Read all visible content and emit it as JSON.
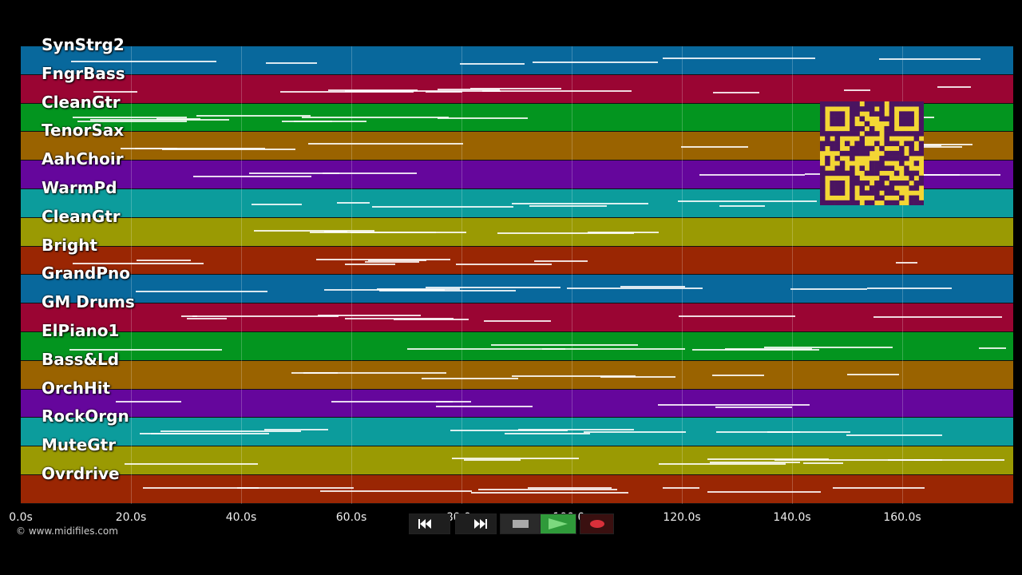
{
  "tracks": [
    {
      "name": "SynStrg2",
      "color": "#08689c"
    },
    {
      "name": "FngrBass",
      "color": "#9a0533"
    },
    {
      "name": "CleanGtr",
      "color": "#03951f"
    },
    {
      "name": "TenorSax",
      "color": "#9a6300"
    },
    {
      "name": "AahChoir",
      "color": "#65069c"
    },
    {
      "name": "WarmPd",
      "color": "#0c9c9c"
    },
    {
      "name": "CleanGtr",
      "color": "#9a9a03"
    },
    {
      "name": "Bright",
      "color": "#9a2603"
    },
    {
      "name": "GrandPno",
      "color": "#08689c"
    },
    {
      "name": "GM Drums",
      "color": "#9a0533"
    },
    {
      "name": "ElPiano1",
      "color": "#03951f"
    },
    {
      "name": "Bass&Ld",
      "color": "#9a6300"
    },
    {
      "name": "OrchHit",
      "color": "#65069c"
    },
    {
      "name": "RockOrgn",
      "color": "#0c9c9c"
    },
    {
      "name": "MuteGtr",
      "color": "#9a9a03"
    },
    {
      "name": "Ovrdrive",
      "color": "#9a2603"
    }
  ],
  "timeline": {
    "seconds_per_label": 20,
    "max_seconds": 180,
    "tick_labels": [
      "0.0s",
      "20.0s",
      "40.0s",
      "60.0s",
      "80.0s",
      "100.0s",
      "120.0s",
      "140.0s",
      "160.0s"
    ]
  },
  "copyright": "© www.midifiles.com",
  "controls": {
    "rewind": "rewind-icon",
    "fast_forward": "fast-forward-icon",
    "stop": "stop-icon",
    "play": "play-icon",
    "record": "record-icon",
    "play_color": "#2f9a3a",
    "record_color": "#d9303a"
  }
}
